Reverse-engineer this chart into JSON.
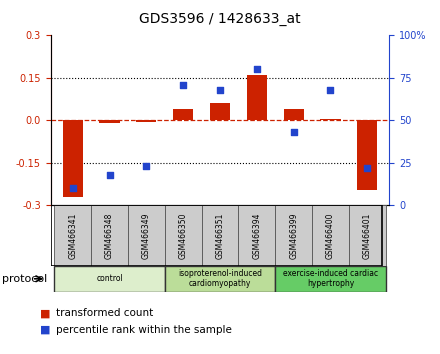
{
  "title": "GDS3596 / 1428633_at",
  "samples": [
    "GSM466341",
    "GSM466348",
    "GSM466349",
    "GSM466350",
    "GSM466351",
    "GSM466394",
    "GSM466399",
    "GSM466400",
    "GSM466401"
  ],
  "transformed_count": [
    -0.27,
    -0.01,
    -0.005,
    0.04,
    0.06,
    0.16,
    0.04,
    0.005,
    -0.245
  ],
  "percentile_rank": [
    10,
    18,
    23,
    71,
    68,
    80,
    43,
    68,
    22
  ],
  "ylim_left": [
    -0.3,
    0.3
  ],
  "ylim_right": [
    0,
    100
  ],
  "yticks_left": [
    -0.3,
    -0.15,
    0.0,
    0.15,
    0.3
  ],
  "yticks_right": [
    0,
    25,
    50,
    75,
    100
  ],
  "bar_color": "#cc2200",
  "dot_color": "#2244cc",
  "hline_color": "#cc2200",
  "background_color": "#ffffff",
  "plot_bg": "#ffffff",
  "protocol_groups": [
    {
      "label": "control",
      "start": 0,
      "end": 3,
      "color": "#ddeecc"
    },
    {
      "label": "isoproterenol-induced\ncardiomyopathy",
      "start": 3,
      "end": 6,
      "color": "#bbdd99"
    },
    {
      "label": "exercise-induced cardiac\nhypertrophy",
      "start": 6,
      "end": 9,
      "color": "#66cc66"
    }
  ],
  "legend_bar_label": "transformed count",
  "legend_dot_label": "percentile rank within the sample",
  "protocol_label": "protocol",
  "title_color": "#000000",
  "left_tick_color": "#cc2200",
  "right_tick_color": "#2244cc",
  "sample_box_color": "#cccccc",
  "protocol_border_color": "#333333"
}
